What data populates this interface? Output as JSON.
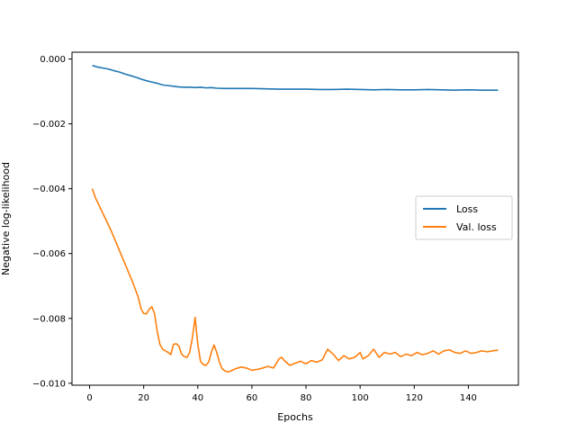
{
  "chart_data": {
    "type": "line",
    "title": "",
    "xlabel": "Epochs",
    "ylabel": "Negative log-likelihood",
    "xlim": [
      -6.5,
      158.5
    ],
    "ylim": [
      -0.01006,
      0.00021
    ],
    "xticks": [
      0,
      20,
      40,
      60,
      80,
      100,
      120,
      140
    ],
    "xtick_labels": [
      "0",
      "20",
      "40",
      "60",
      "80",
      "100",
      "120",
      "140"
    ],
    "yticks": [
      0.0,
      -0.002,
      -0.004,
      -0.006,
      -0.008,
      -0.01
    ],
    "ytick_labels": [
      "0.000",
      "−0.002",
      "−0.004",
      "−0.006",
      "−0.008",
      "−0.010"
    ],
    "grid": false,
    "legend_position": "center right",
    "series": [
      {
        "name": "Loss",
        "color": "#1f77b4",
        "points": [
          [
            1,
            -0.0002
          ],
          [
            3,
            -0.00025
          ],
          [
            5,
            -0.00028
          ],
          [
            7,
            -0.00031
          ],
          [
            9,
            -0.00036
          ],
          [
            11,
            -0.0004
          ],
          [
            13,
            -0.00046
          ],
          [
            15,
            -0.00051
          ],
          [
            17,
            -0.00056
          ],
          [
            19,
            -0.00062
          ],
          [
            21,
            -0.00067
          ],
          [
            23,
            -0.00071
          ],
          [
            25,
            -0.00075
          ],
          [
            27,
            -0.0008
          ],
          [
            29,
            -0.00082
          ],
          [
            31,
            -0.00084
          ],
          [
            33,
            -0.00086
          ],
          [
            35,
            -0.00087
          ],
          [
            37,
            -0.00087
          ],
          [
            39,
            -0.00088
          ],
          [
            41,
            -0.00087
          ],
          [
            43,
            -0.00089
          ],
          [
            45,
            -0.00088
          ],
          [
            47,
            -0.0009
          ],
          [
            50,
            -0.00091
          ],
          [
            55,
            -0.00091
          ],
          [
            60,
            -0.00091
          ],
          [
            65,
            -0.00092
          ],
          [
            70,
            -0.00093
          ],
          [
            75,
            -0.00093
          ],
          [
            80,
            -0.00093
          ],
          [
            85,
            -0.00094
          ],
          [
            90,
            -0.00094
          ],
          [
            95,
            -0.00093
          ],
          [
            100,
            -0.00094
          ],
          [
            105,
            -0.00095
          ],
          [
            110,
            -0.00094
          ],
          [
            115,
            -0.00095
          ],
          [
            120,
            -0.00095
          ],
          [
            125,
            -0.00094
          ],
          [
            130,
            -0.00095
          ],
          [
            135,
            -0.00096
          ],
          [
            140,
            -0.00095
          ],
          [
            145,
            -0.00096
          ],
          [
            151,
            -0.00096
          ]
        ]
      },
      {
        "name": "Val. loss",
        "color": "#ff7f0e",
        "points": [
          [
            1,
            -0.004
          ],
          [
            2,
            -0.00425
          ],
          [
            4,
            -0.0046
          ],
          [
            6,
            -0.00495
          ],
          [
            8,
            -0.0053
          ],
          [
            10,
            -0.0057
          ],
          [
            12,
            -0.0061
          ],
          [
            14,
            -0.0065
          ],
          [
            16,
            -0.0069
          ],
          [
            18,
            -0.00735
          ],
          [
            19,
            -0.0077
          ],
          [
            20,
            -0.00785
          ],
          [
            21,
            -0.00786
          ],
          [
            22,
            -0.00772
          ],
          [
            23,
            -0.00764
          ],
          [
            24,
            -0.00785
          ],
          [
            25,
            -0.0084
          ],
          [
            26,
            -0.0088
          ],
          [
            27,
            -0.00895
          ],
          [
            28,
            -0.009
          ],
          [
            29,
            -0.00905
          ],
          [
            30,
            -0.00912
          ],
          [
            31,
            -0.0088
          ],
          [
            32,
            -0.00878
          ],
          [
            33,
            -0.00885
          ],
          [
            34,
            -0.0091
          ],
          [
            35,
            -0.00918
          ],
          [
            36,
            -0.0092
          ],
          [
            37,
            -0.00905
          ],
          [
            38,
            -0.0086
          ],
          [
            39,
            -0.00797
          ],
          [
            40,
            -0.0088
          ],
          [
            41,
            -0.00932
          ],
          [
            42,
            -0.00942
          ],
          [
            43,
            -0.00945
          ],
          [
            44,
            -0.00935
          ],
          [
            45,
            -0.00905
          ],
          [
            46,
            -0.00882
          ],
          [
            47,
            -0.00905
          ],
          [
            48,
            -0.00935
          ],
          [
            49,
            -0.00955
          ],
          [
            50,
            -0.00962
          ],
          [
            51,
            -0.00965
          ],
          [
            52,
            -0.00963
          ],
          [
            54,
            -0.00955
          ],
          [
            56,
            -0.0095
          ],
          [
            58,
            -0.00953
          ],
          [
            60,
            -0.0096
          ],
          [
            62,
            -0.00957
          ],
          [
            64,
            -0.00953
          ],
          [
            66,
            -0.00948
          ],
          [
            68,
            -0.00953
          ],
          [
            70,
            -0.00925
          ],
          [
            71,
            -0.0092
          ],
          [
            72,
            -0.0093
          ],
          [
            74,
            -0.00945
          ],
          [
            76,
            -0.00938
          ],
          [
            78,
            -0.00932
          ],
          [
            80,
            -0.0094
          ],
          [
            82,
            -0.0093
          ],
          [
            84,
            -0.00935
          ],
          [
            86,
            -0.00928
          ],
          [
            88,
            -0.00895
          ],
          [
            90,
            -0.0091
          ],
          [
            92,
            -0.0093
          ],
          [
            94,
            -0.00915
          ],
          [
            96,
            -0.00925
          ],
          [
            98,
            -0.0092
          ],
          [
            100,
            -0.00905
          ],
          [
            101,
            -0.00925
          ],
          [
            103,
            -0.00915
          ],
          [
            105,
            -0.00895
          ],
          [
            107,
            -0.0092
          ],
          [
            109,
            -0.00905
          ],
          [
            111,
            -0.0091
          ],
          [
            113,
            -0.00905
          ],
          [
            115,
            -0.00918
          ],
          [
            117,
            -0.0091
          ],
          [
            119,
            -0.00915
          ],
          [
            121,
            -0.00905
          ],
          [
            123,
            -0.00912
          ],
          [
            125,
            -0.00908
          ],
          [
            127,
            -0.009
          ],
          [
            129,
            -0.0091
          ],
          [
            131,
            -0.009
          ],
          [
            133,
            -0.00897
          ],
          [
            135,
            -0.00905
          ],
          [
            137,
            -0.00908
          ],
          [
            139,
            -0.009
          ],
          [
            141,
            -0.00908
          ],
          [
            143,
            -0.00905
          ],
          [
            145,
            -0.009
          ],
          [
            147,
            -0.00903
          ],
          [
            149,
            -0.009
          ],
          [
            151,
            -0.00898
          ]
        ]
      }
    ]
  }
}
